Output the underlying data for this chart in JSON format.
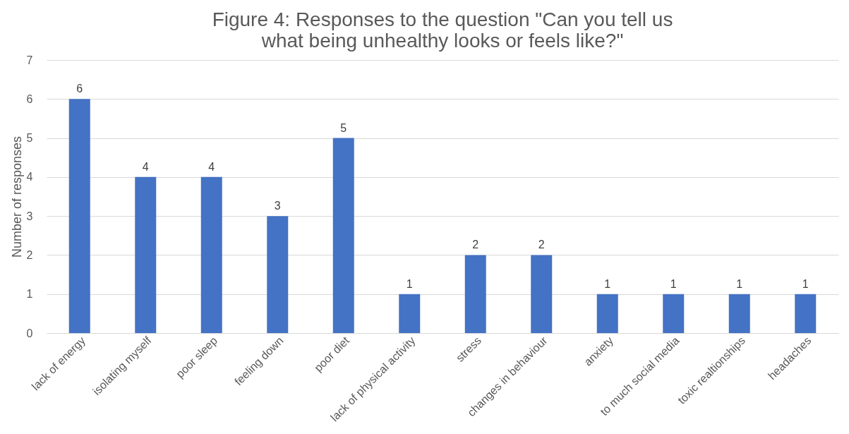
{
  "chart_data": {
    "type": "bar",
    "title": "Figure 4: Responses to the question \"Can you tell us what being unhealthy looks or feels like?\"",
    "ylabel": "Number of responses",
    "categories": [
      "lack of energy",
      "isolating myself",
      "poor sleep",
      "feeling down",
      "poor diet",
      "lack of physical activity",
      "stress",
      "changes in behaviour",
      "anxiety",
      "to much social media",
      "toxic realtionships",
      "headaches"
    ],
    "values": [
      6,
      4,
      4,
      3,
      5,
      1,
      2,
      2,
      1,
      1,
      1,
      1
    ],
    "color": "#4472c4",
    "ylim": [
      0,
      7
    ],
    "yticks": [
      0,
      1,
      2,
      3,
      4,
      5,
      6,
      7
    ],
    "grid": "y",
    "data_labels": true
  }
}
